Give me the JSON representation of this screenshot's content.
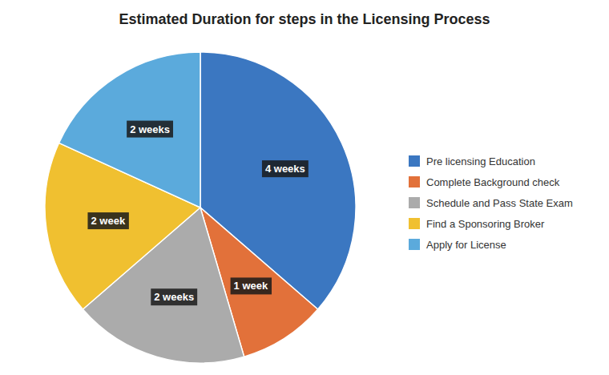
{
  "chart_data": {
    "type": "pie",
    "title": "Estimated Duration for steps in the Licensing Process",
    "categories": [
      "Pre licensing Education",
      "Complete Background check",
      "Schedule and Pass State Exam",
      "Find a Sponsoring Broker",
      "Apply for License"
    ],
    "values": [
      4,
      1,
      2,
      2,
      2
    ],
    "value_labels": [
      "4 weeks",
      "1 week",
      "2 weeks",
      "2 week",
      "2 weeks"
    ],
    "colors": [
      "#3B77C1",
      "#E2713A",
      "#ABABAB",
      "#F0C030",
      "#5BAADC"
    ],
    "data_labels": true,
    "legend": "right"
  }
}
